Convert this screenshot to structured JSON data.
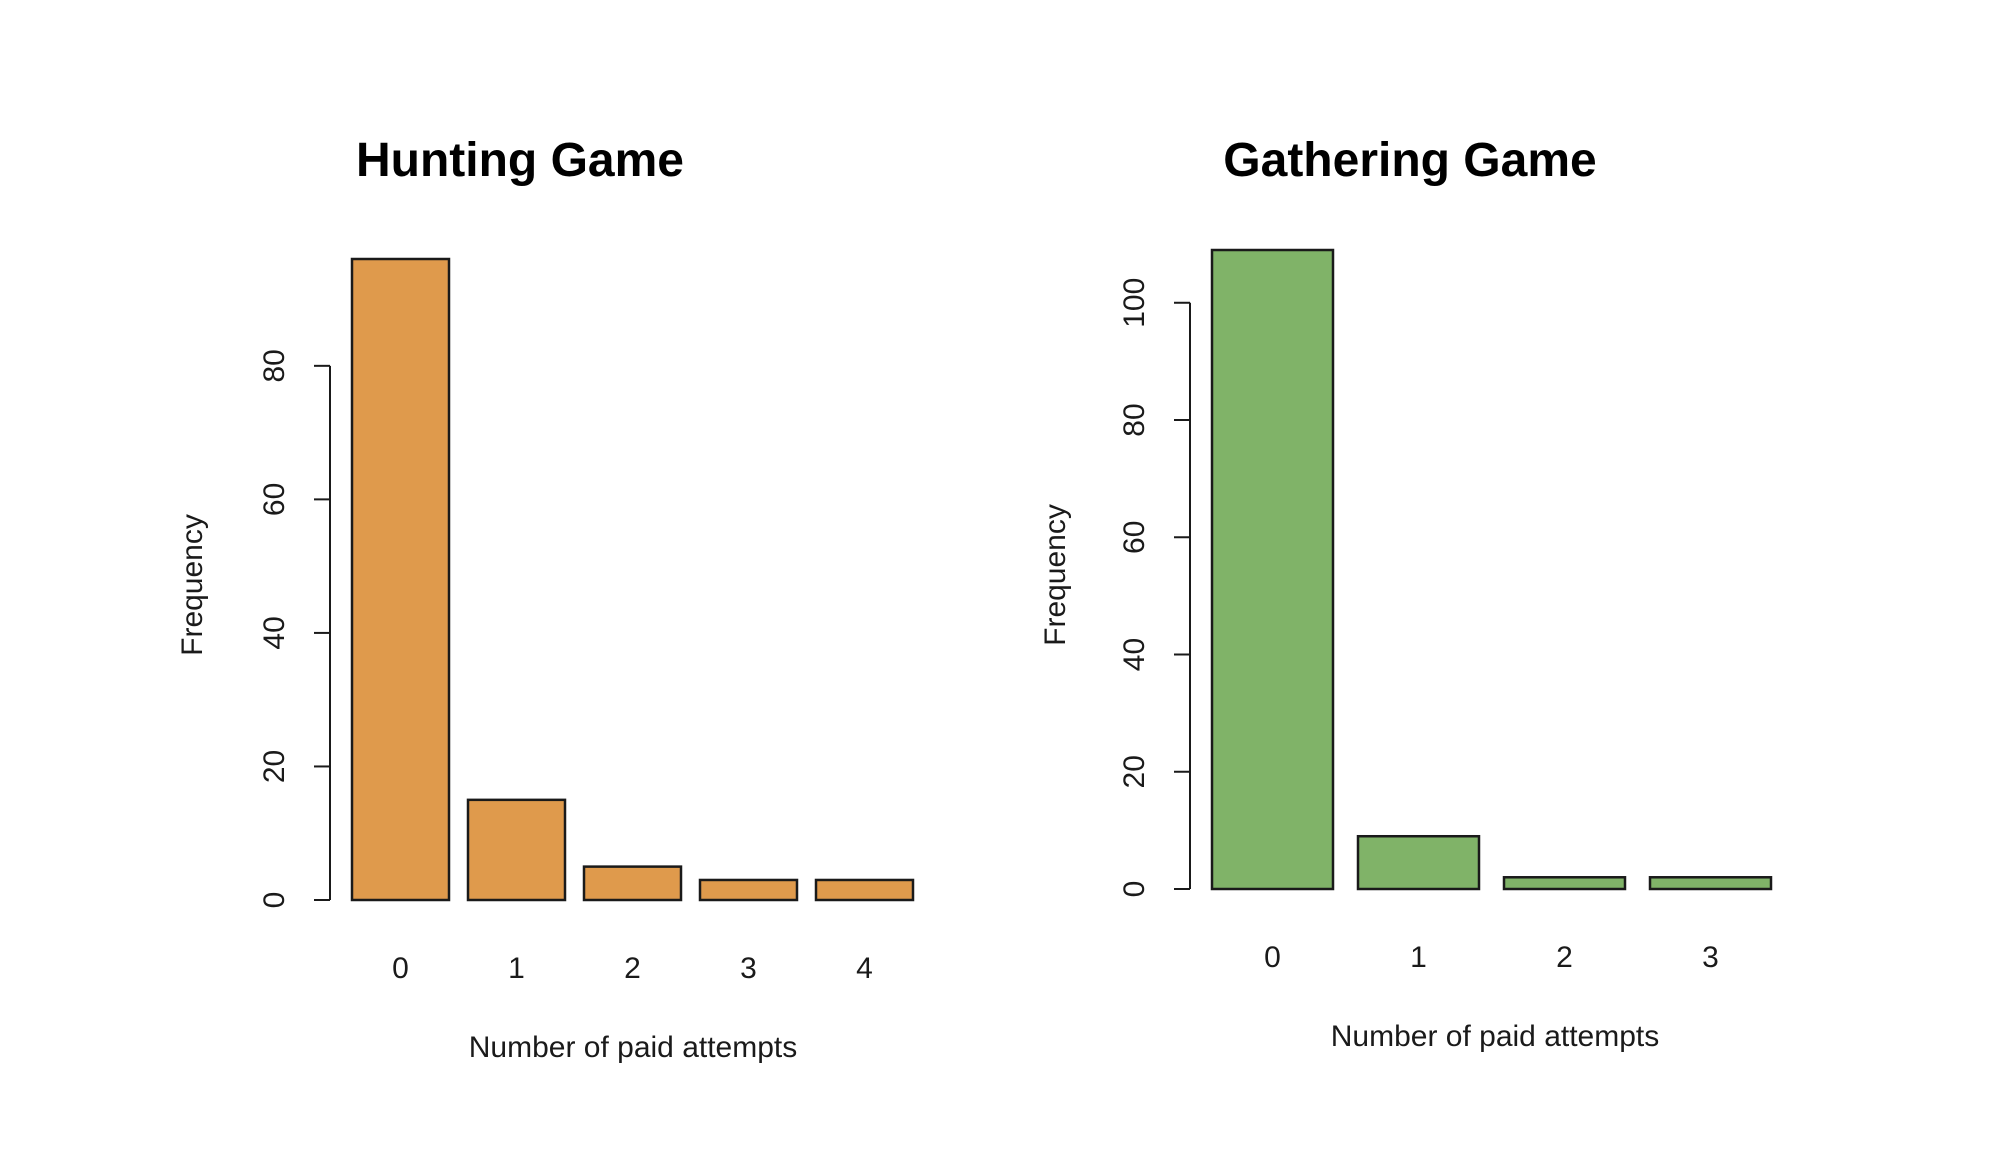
{
  "chart_data": [
    {
      "type": "bar",
      "title": "Hunting Game",
      "xlabel": "Number of paid attempts",
      "ylabel": "Frequency",
      "categories": [
        "0",
        "1",
        "2",
        "3",
        "4"
      ],
      "values": [
        96,
        15,
        5,
        3,
        3
      ],
      "ylim": [
        0,
        96
      ],
      "yticks": [
        0,
        20,
        40,
        60,
        80
      ],
      "bar_color": "#df9a4c",
      "grid": false,
      "legend": "none"
    },
    {
      "type": "bar",
      "title": "Gathering Game",
      "xlabel": "Number of paid attempts",
      "ylabel": "Frequency",
      "categories": [
        "0",
        "1",
        "2",
        "3"
      ],
      "values": [
        109,
        9,
        2,
        2
      ],
      "ylim": [
        0,
        109
      ],
      "yticks": [
        0,
        20,
        40,
        60,
        80,
        100
      ],
      "bar_color": "#80b368",
      "grid": false,
      "legend": "none"
    }
  ]
}
